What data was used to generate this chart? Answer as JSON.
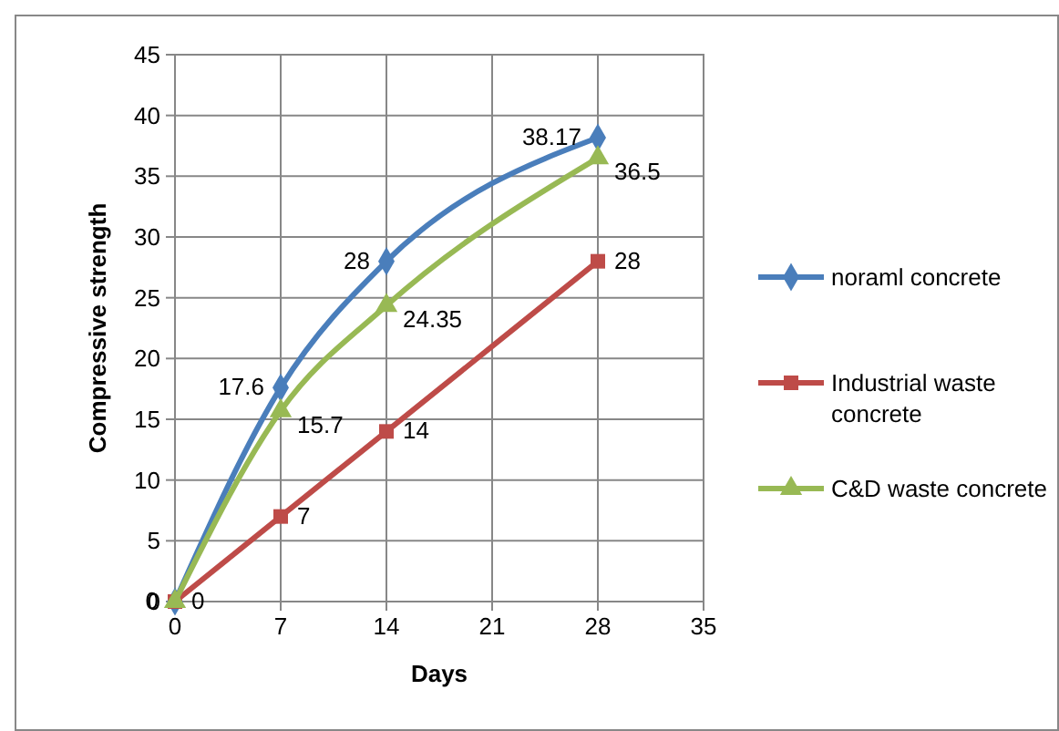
{
  "chart_data": {
    "type": "line",
    "xlabel": "Days",
    "ylabel": "Compressive strength",
    "xlim": [
      0,
      35
    ],
    "xticks": [
      0,
      7,
      14,
      21,
      28,
      35
    ],
    "ylim": [
      0,
      45
    ],
    "yticks": [
      0,
      5,
      10,
      15,
      20,
      25,
      30,
      35,
      40,
      45
    ],
    "grid": true,
    "legend": "right",
    "line_style": "solid",
    "series": [
      {
        "name": "noraml concrete",
        "color": "#4a7ebb",
        "marker": "diamond",
        "x": [
          0,
          7,
          14,
          28
        ],
        "values": [
          0,
          17.6,
          28,
          38.17
        ],
        "value_labels": [
          "0",
          "17.6",
          "28",
          "38.17"
        ]
      },
      {
        "name": "Industrial waste concrete",
        "color": "#be4b48",
        "marker": "square",
        "x": [
          0,
          7,
          14,
          28
        ],
        "values": [
          0,
          7,
          14,
          28
        ],
        "value_labels": [
          "0",
          "7",
          "14",
          "28"
        ]
      },
      {
        "name": "C&D waste concrete",
        "color": "#98b954",
        "marker": "triangle",
        "x": [
          0,
          7,
          14,
          28
        ],
        "values": [
          0,
          15.7,
          24.35,
          36.5
        ],
        "value_labels": [
          null,
          "15.7",
          "24.35",
          "36.5"
        ]
      }
    ]
  }
}
